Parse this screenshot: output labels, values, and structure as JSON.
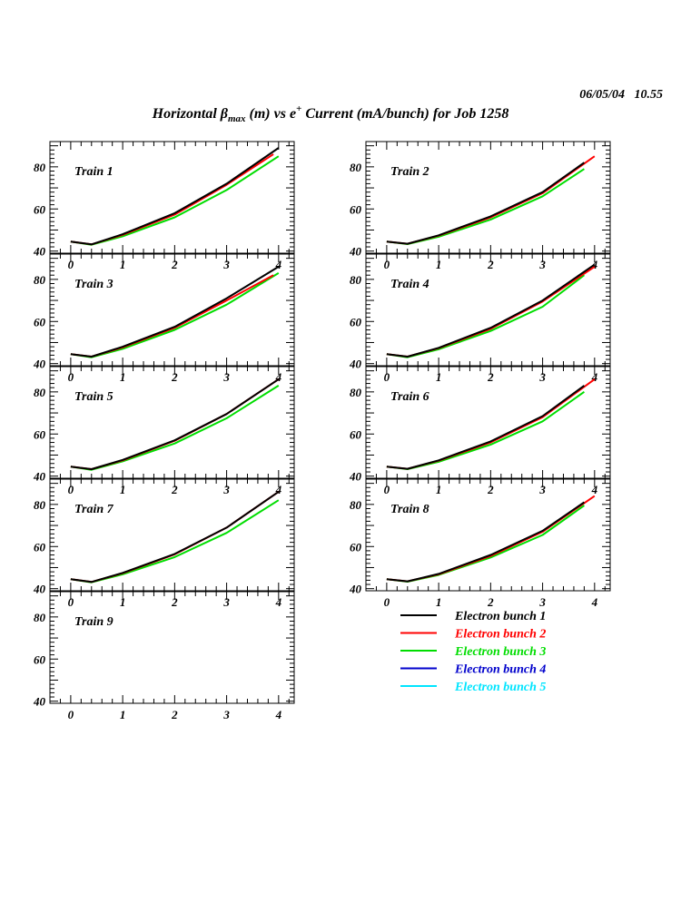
{
  "header": {
    "date": "06/05/04   10.55",
    "title_pre": "Horizontal β",
    "title_sub": "max",
    "title_mid": " (m) vs e",
    "title_sup": "+",
    "title_post": " Current (mA/bunch) for Job 1258"
  },
  "chart_data": {
    "type": "line",
    "title": "Horizontal βmax (m) vs e+ Current (mA/bunch) for Job 1258",
    "xlabel": "",
    "ylabel": "",
    "xlim": [
      -0.4,
      4.3
    ],
    "ylim": [
      39,
      92
    ],
    "xticks": [
      0,
      1,
      2,
      3,
      4
    ],
    "yticks": [
      40,
      60,
      80
    ],
    "grid": false,
    "legend_position": "below-right",
    "series_legend": [
      {
        "name": "Electron bunch 1",
        "color": "#000000"
      },
      {
        "name": "Electron bunch 2",
        "color": "#ff0000"
      },
      {
        "name": "Electron bunch 3",
        "color": "#00dd00"
      },
      {
        "name": "Electron bunch 4",
        "color": "#0000cc"
      },
      {
        "name": "Electron bunch 5",
        "color": "#00e5ff"
      }
    ],
    "panels": [
      {
        "label": "Train 1",
        "series": [
          {
            "color": "#000000",
            "points": [
              [
                0,
                44.5
              ],
              [
                0.4,
                43.2
              ],
              [
                1,
                48
              ],
              [
                2,
                58
              ],
              [
                3,
                72
              ],
              [
                4,
                89
              ]
            ]
          },
          {
            "color": "#ff0000",
            "points": [
              [
                0,
                44.5
              ],
              [
                0.4,
                43.2
              ],
              [
                1,
                47.7
              ],
              [
                2,
                57.3
              ],
              [
                3,
                71.5
              ],
              [
                3.9,
                86
              ]
            ]
          },
          {
            "color": "#00dd00",
            "points": [
              [
                0,
                44.5
              ],
              [
                0.4,
                43.0
              ],
              [
                1,
                47
              ],
              [
                2,
                56
              ],
              [
                3,
                69
              ],
              [
                4,
                85
              ]
            ]
          }
        ]
      },
      {
        "label": "Train 2",
        "series": [
          {
            "color": "#000000",
            "points": [
              [
                0,
                44.5
              ],
              [
                0.4,
                43.5
              ],
              [
                1,
                47.5
              ],
              [
                2,
                56.5
              ],
              [
                3,
                68
              ],
              [
                3.8,
                82
              ]
            ]
          },
          {
            "color": "#ff0000",
            "points": [
              [
                0,
                44.5
              ],
              [
                0.4,
                43.5
              ],
              [
                1,
                47.3
              ],
              [
                2,
                56
              ],
              [
                3,
                67.5
              ],
              [
                4,
                85
              ]
            ]
          },
          {
            "color": "#00dd00",
            "points": [
              [
                0,
                44.5
              ],
              [
                0.4,
                43.3
              ],
              [
                1,
                46.8
              ],
              [
                2,
                55
              ],
              [
                3,
                66
              ],
              [
                3.8,
                79
              ]
            ]
          }
        ]
      },
      {
        "label": "Train 3",
        "series": [
          {
            "color": "#000000",
            "points": [
              [
                0,
                44.5
              ],
              [
                0.4,
                43.3
              ],
              [
                1,
                48
              ],
              [
                2,
                57.5
              ],
              [
                3,
                71
              ],
              [
                4,
                86
              ]
            ]
          },
          {
            "color": "#ff0000",
            "points": [
              [
                0,
                44.5
              ],
              [
                0.4,
                43.3
              ],
              [
                1,
                47.7
              ],
              [
                2,
                57
              ],
              [
                3,
                70
              ],
              [
                3.9,
                82
              ]
            ]
          },
          {
            "color": "#00dd00",
            "points": [
              [
                0,
                44.5
              ],
              [
                0.4,
                43.0
              ],
              [
                1,
                47
              ],
              [
                2,
                56
              ],
              [
                3,
                68
              ],
              [
                4,
                83
              ]
            ]
          }
        ]
      },
      {
        "label": "Train 4",
        "series": [
          {
            "color": "#000000",
            "points": [
              [
                0,
                44.5
              ],
              [
                0.4,
                43.3
              ],
              [
                1,
                47.5
              ],
              [
                2,
                57
              ],
              [
                3,
                70
              ],
              [
                4,
                87
              ]
            ]
          },
          {
            "color": "#ff0000",
            "points": [
              [
                0,
                44.5
              ],
              [
                0.4,
                43.3
              ],
              [
                1,
                47.3
              ],
              [
                2,
                56.5
              ],
              [
                3,
                69.5
              ],
              [
                4,
                86
              ]
            ]
          },
          {
            "color": "#00dd00",
            "points": [
              [
                0,
                44.5
              ],
              [
                0.4,
                43.0
              ],
              [
                1,
                46.8
              ],
              [
                2,
                55.5
              ],
              [
                3,
                67
              ],
              [
                3.8,
                82
              ]
            ]
          }
        ]
      },
      {
        "label": "Train 5",
        "series": [
          {
            "color": "#000000",
            "points": [
              [
                0,
                44.5
              ],
              [
                0.4,
                43.3
              ],
              [
                1,
                47.7
              ],
              [
                2,
                57
              ],
              [
                3,
                69.5
              ],
              [
                4,
                86
              ]
            ]
          },
          {
            "color": "#ff0000",
            "points": [
              [
                0,
                44.5
              ],
              [
                0.4,
                43.3
              ],
              [
                1,
                47.5
              ],
              [
                2,
                56.8
              ],
              [
                3,
                69.5
              ],
              [
                4,
                86
              ]
            ]
          },
          {
            "color": "#00dd00",
            "points": [
              [
                0,
                44.5
              ],
              [
                0.4,
                43.0
              ],
              [
                1,
                47
              ],
              [
                2,
                55.5
              ],
              [
                3,
                67.5
              ],
              [
                4,
                83
              ]
            ]
          }
        ]
      },
      {
        "label": "Train 6",
        "series": [
          {
            "color": "#000000",
            "points": [
              [
                0,
                44.5
              ],
              [
                0.4,
                43.5
              ],
              [
                1,
                47.5
              ],
              [
                2,
                56.5
              ],
              [
                3,
                68.5
              ],
              [
                3.8,
                83
              ]
            ]
          },
          {
            "color": "#ff0000",
            "points": [
              [
                0,
                44.5
              ],
              [
                0.4,
                43.5
              ],
              [
                1,
                47.3
              ],
              [
                2,
                56
              ],
              [
                3,
                68
              ],
              [
                4,
                86
              ]
            ]
          },
          {
            "color": "#00dd00",
            "points": [
              [
                0,
                44.5
              ],
              [
                0.4,
                43.3
              ],
              [
                1,
                46.8
              ],
              [
                2,
                55
              ],
              [
                3,
                66
              ],
              [
                3.8,
                80
              ]
            ]
          }
        ]
      },
      {
        "label": "Train 7",
        "series": [
          {
            "color": "#000000",
            "points": [
              [
                0,
                44.5
              ],
              [
                0.4,
                43.2
              ],
              [
                1,
                47.5
              ],
              [
                2,
                56.5
              ],
              [
                3,
                69
              ],
              [
                4,
                86
              ]
            ]
          },
          {
            "color": "#ff0000",
            "points": [
              [
                0,
                44.5
              ],
              [
                0.4,
                43.2
              ],
              [
                1,
                47.3
              ],
              [
                2,
                56.3
              ],
              [
                3,
                69
              ],
              [
                4,
                86
              ]
            ]
          },
          {
            "color": "#00dd00",
            "points": [
              [
                0,
                44.5
              ],
              [
                0.4,
                43.0
              ],
              [
                1,
                46.8
              ],
              [
                2,
                55
              ],
              [
                3,
                66.5
              ],
              [
                4,
                82
              ]
            ]
          }
        ]
      },
      {
        "label": "Train 8",
        "series": [
          {
            "color": "#000000",
            "points": [
              [
                0,
                44.5
              ],
              [
                0.4,
                43.5
              ],
              [
                1,
                47
              ],
              [
                2,
                56
              ],
              [
                3,
                67.5
              ],
              [
                3.8,
                81
              ]
            ]
          },
          {
            "color": "#ff0000",
            "points": [
              [
                0,
                44.5
              ],
              [
                0.4,
                43.5
              ],
              [
                1,
                46.8
              ],
              [
                2,
                55.5
              ],
              [
                3,
                67
              ],
              [
                4,
                84
              ]
            ]
          },
          {
            "color": "#00dd00",
            "points": [
              [
                0,
                44.5
              ],
              [
                0.4,
                43.3
              ],
              [
                1,
                46.5
              ],
              [
                2,
                54.8
              ],
              [
                3,
                65.5
              ],
              [
                3.8,
                79.5
              ]
            ]
          }
        ]
      },
      {
        "label": "Train 9",
        "series": []
      }
    ]
  }
}
